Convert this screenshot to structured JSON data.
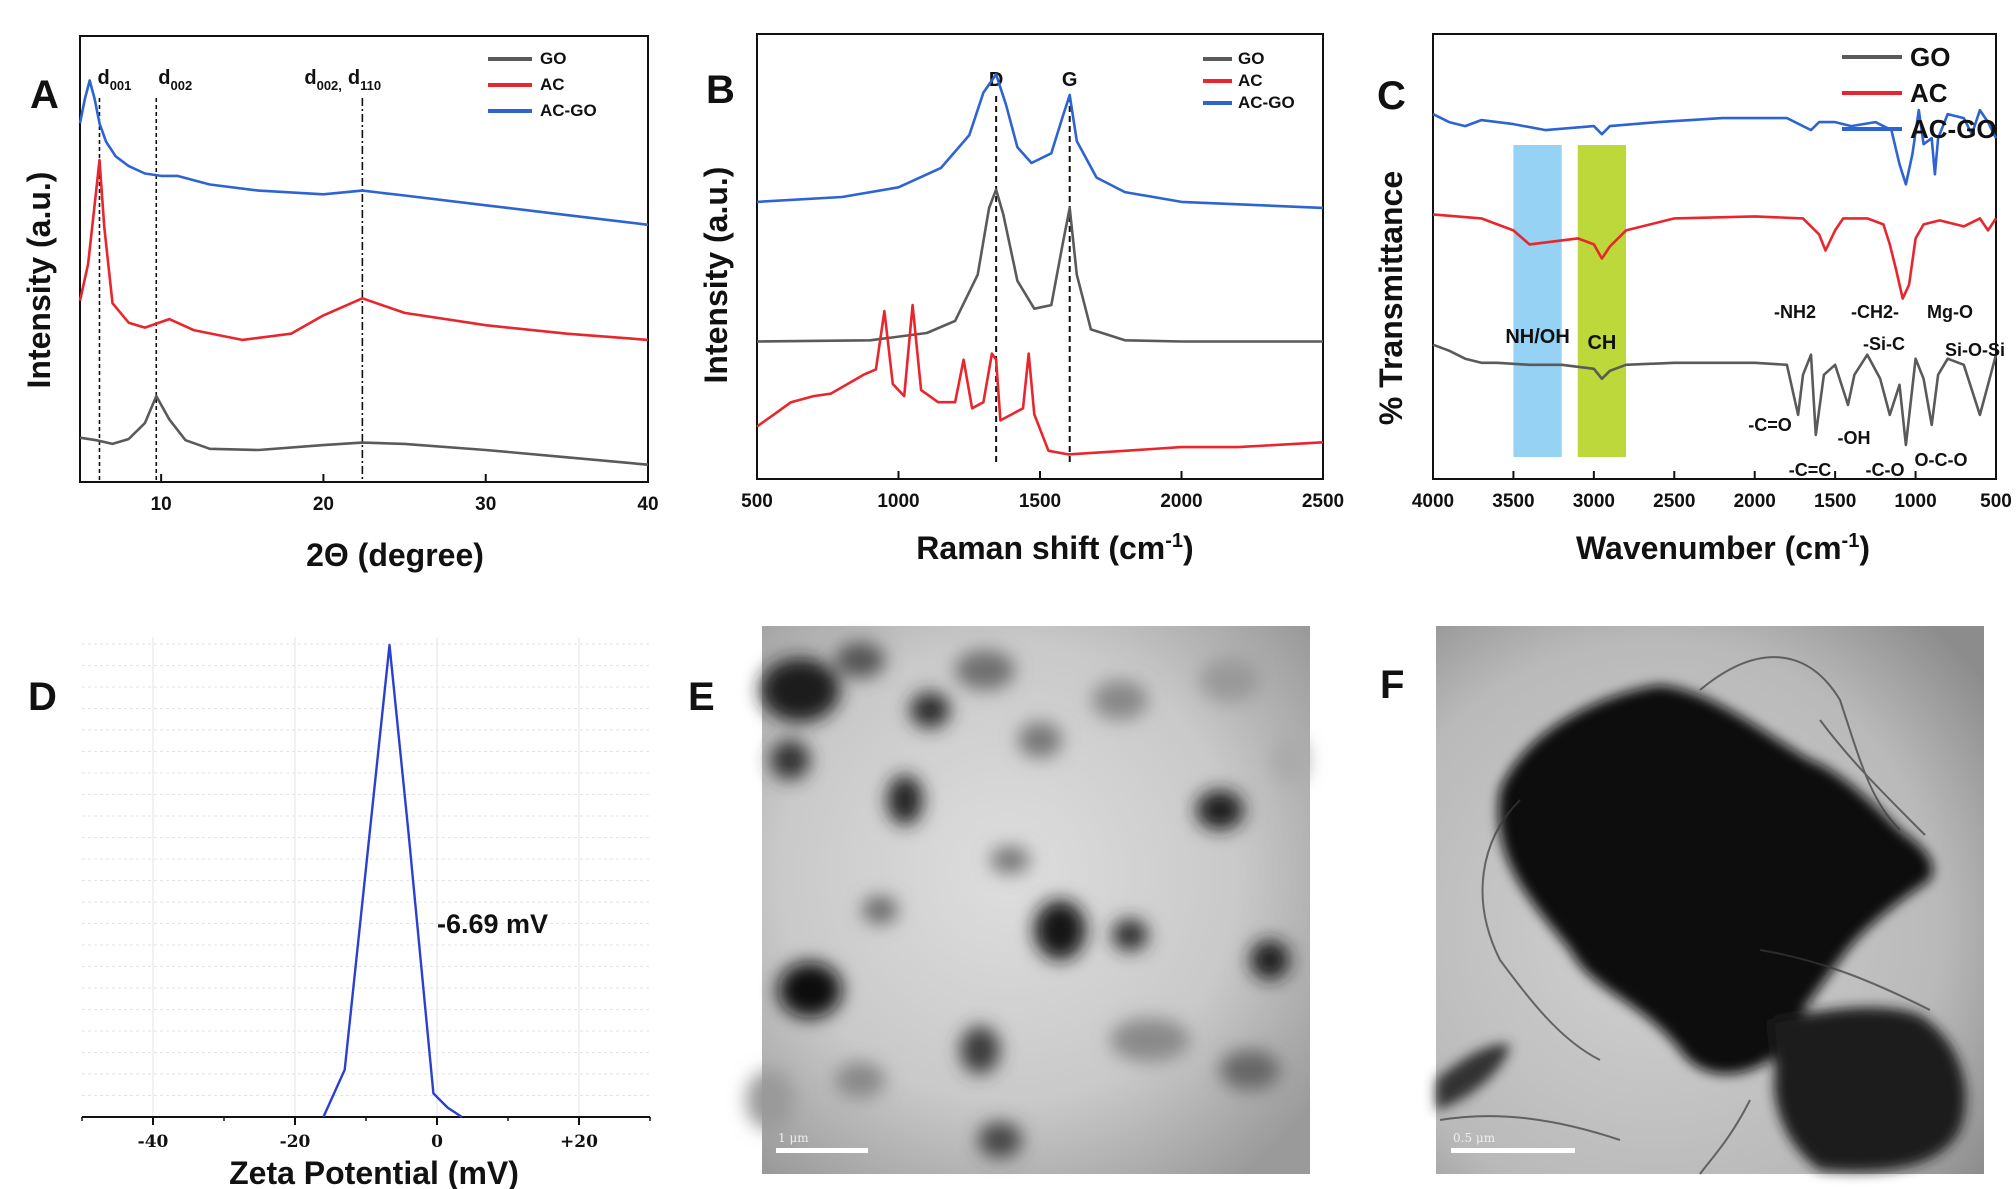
{
  "panels": {
    "A": "A",
    "B": "B",
    "C": "C",
    "D": "D",
    "E": "E",
    "F": "F"
  },
  "colors": {
    "GO": "#5a5a5a",
    "AC": "#e8262d",
    "AC-GO": "#2d64d2",
    "zeta": "#2b3fd0",
    "nh_band": "#8fd0f2",
    "ch_band": "#b8d630"
  },
  "chart_data": [
    {
      "id": "A",
      "type": "line",
      "xlabel": "2Θ (degree)",
      "ylabel": "Intensity (a.u.)",
      "xlim": [
        5,
        40
      ],
      "xticks": [
        10,
        20,
        30,
        40
      ],
      "legend": [
        "GO",
        "AC",
        "AC-GO"
      ],
      "legend_position": "top-right",
      "reference_lines": [
        {
          "x": 6.2,
          "sub": "001"
        },
        {
          "x": 9.7,
          "sub": "002"
        },
        {
          "x": 22.4,
          "sub": "002,",
          "sub2": "110"
        }
      ],
      "series": [
        {
          "name": "GO",
          "x": [
            5,
            6,
            7,
            8,
            9,
            9.7,
            10.5,
            11.5,
            13,
            16,
            20,
            22.4,
            25,
            30,
            35,
            40
          ],
          "y": [
            0.28,
            0.26,
            0.23,
            0.27,
            0.4,
            0.62,
            0.43,
            0.26,
            0.19,
            0.18,
            0.22,
            0.24,
            0.23,
            0.18,
            0.12,
            0.06
          ]
        },
        {
          "name": "AC",
          "x": [
            5,
            5.5,
            6.0,
            6.2,
            6.5,
            7,
            8,
            9,
            10.5,
            12,
            15,
            18,
            20,
            22.4,
            25,
            30,
            35,
            40
          ],
          "y": [
            1.4,
            1.7,
            2.3,
            2.55,
            2.0,
            1.38,
            1.22,
            1.18,
            1.25,
            1.16,
            1.08,
            1.13,
            1.28,
            1.42,
            1.3,
            1.2,
            1.13,
            1.08
          ]
        },
        {
          "name": "AC-GO",
          "x": [
            5,
            5.3,
            5.6,
            5.9,
            6.2,
            6.6,
            7.2,
            8,
            9,
            10,
            11,
            13,
            16,
            20,
            22.4,
            25,
            30,
            35,
            40
          ],
          "y": [
            2.85,
            3.05,
            3.2,
            3.05,
            2.85,
            2.7,
            2.58,
            2.5,
            2.44,
            2.42,
            2.42,
            2.35,
            2.3,
            2.27,
            2.3,
            2.26,
            2.18,
            2.1,
            2.02
          ]
        }
      ]
    },
    {
      "id": "B",
      "type": "line",
      "xlabel": "Raman shift (cm",
      "xlabel_sup": "-1",
      "xlabel_end": ")",
      "ylabel": "Intensity (a.u.)",
      "xlim": [
        500,
        2500
      ],
      "xticks": [
        500,
        1000,
        1500,
        2000,
        2500
      ],
      "legend": [
        "GO",
        "AC",
        "AC-GO"
      ],
      "legend_position": "top-right",
      "reference_lines": [
        {
          "x": 1345,
          "label": "D"
        },
        {
          "x": 1605,
          "label": "G"
        }
      ],
      "series": [
        {
          "name": "GO",
          "x": [
            500,
            900,
            1100,
            1200,
            1280,
            1320,
            1345,
            1370,
            1420,
            1480,
            1540,
            1580,
            1605,
            1630,
            1680,
            1800,
            2000,
            2500
          ],
          "y": [
            1.45,
            1.46,
            1.52,
            1.62,
            2.0,
            2.55,
            2.7,
            2.5,
            1.95,
            1.72,
            1.75,
            2.25,
            2.55,
            2.0,
            1.55,
            1.46,
            1.45,
            1.45
          ]
        },
        {
          "name": "AC",
          "x": [
            500,
            560,
            620,
            700,
            760,
            820,
            880,
            920,
            950,
            980,
            1020,
            1050,
            1080,
            1140,
            1200,
            1230,
            1260,
            1300,
            1330,
            1345,
            1360,
            1400,
            1440,
            1460,
            1480,
            1530,
            1600,
            1800,
            2000,
            2200,
            2500
          ],
          "y": [
            0.75,
            0.85,
            0.95,
            1.0,
            1.02,
            1.1,
            1.18,
            1.22,
            1.7,
            1.1,
            1.0,
            1.75,
            1.05,
            0.95,
            0.95,
            1.3,
            0.9,
            0.95,
            1.35,
            1.3,
            0.8,
            0.85,
            0.9,
            1.35,
            0.85,
            0.55,
            0.52,
            0.55,
            0.58,
            0.58,
            0.62
          ]
        },
        {
          "name": "AC-GO",
          "x": [
            500,
            800,
            1000,
            1150,
            1250,
            1300,
            1345,
            1380,
            1420,
            1470,
            1540,
            1580,
            1605,
            1630,
            1700,
            1800,
            2000,
            2500
          ],
          "y": [
            2.6,
            2.64,
            2.72,
            2.88,
            3.15,
            3.5,
            3.65,
            3.4,
            3.05,
            2.92,
            3.0,
            3.3,
            3.48,
            3.1,
            2.8,
            2.68,
            2.6,
            2.55
          ]
        }
      ]
    },
    {
      "id": "C",
      "type": "line",
      "xlabel": "Wavenumber (cm",
      "xlabel_sup": "-1",
      "xlabel_end": ")",
      "ylabel": "% Transmittance",
      "xlim": [
        4000,
        500
      ],
      "xticks": [
        4000,
        3500,
        3000,
        2500,
        2000,
        1500,
        1000,
        500
      ],
      "legend": [
        "GO",
        "AC",
        "AC-GO"
      ],
      "legend_position": "top-right",
      "bands": [
        {
          "label": "NH/OH",
          "from": 3500,
          "to": 3200
        },
        {
          "label": "CH",
          "from": 3100,
          "to": 2800
        }
      ],
      "annotations": [
        "-NH2",
        "-CH2-",
        "-Si-C",
        "Mg-O",
        "Si-O-Si",
        "-C=O",
        "-OH",
        "-C=C",
        "-C-O",
        "O-C-O"
      ],
      "series": [
        {
          "name": "GO",
          "x": [
            4000,
            3900,
            3800,
            3700,
            3600,
            3400,
            3200,
            3000,
            2950,
            2900,
            2800,
            2500,
            2000,
            1800,
            1730,
            1700,
            1650,
            1620,
            1570,
            1500,
            1420,
            1380,
            1300,
            1220,
            1160,
            1100,
            1060,
            1000,
            950,
            900,
            860,
            800,
            700,
            600,
            550,
            500
          ],
          "y": [
            0.55,
            0.52,
            0.48,
            0.46,
            0.46,
            0.45,
            0.45,
            0.43,
            0.38,
            0.42,
            0.45,
            0.46,
            0.46,
            0.45,
            0.2,
            0.4,
            0.5,
            0.1,
            0.4,
            0.45,
            0.25,
            0.4,
            0.5,
            0.38,
            0.2,
            0.35,
            0.05,
            0.48,
            0.38,
            0.15,
            0.4,
            0.48,
            0.45,
            0.2,
            0.35,
            0.5
          ]
        },
        {
          "name": "AC",
          "x": [
            4000,
            3700,
            3500,
            3400,
            3300,
            3100,
            3000,
            2950,
            2900,
            2800,
            2500,
            2000,
            1700,
            1600,
            1560,
            1500,
            1450,
            1300,
            1200,
            1160,
            1120,
            1080,
            1040,
            1000,
            950,
            850,
            700,
            600,
            550,
            500
          ],
          "y": [
            1.2,
            1.18,
            1.12,
            1.05,
            1.06,
            1.08,
            1.05,
            0.98,
            1.04,
            1.12,
            1.18,
            1.19,
            1.18,
            1.1,
            1.02,
            1.12,
            1.18,
            1.18,
            1.15,
            1.05,
            0.92,
            0.78,
            0.85,
            1.08,
            1.15,
            1.17,
            1.14,
            1.18,
            1.12,
            1.18
          ]
        },
        {
          "name": "AC-GO",
          "x": [
            4000,
            3900,
            3800,
            3700,
            3500,
            3300,
            3000,
            2950,
            2900,
            2600,
            2200,
            1800,
            1650,
            1600,
            1500,
            1400,
            1250,
            1150,
            1100,
            1060,
            1020,
            980,
            950,
            900,
            880,
            860,
            800,
            700,
            650,
            600,
            550,
            500
          ],
          "y": [
            1.7,
            1.66,
            1.64,
            1.67,
            1.65,
            1.62,
            1.64,
            1.6,
            1.64,
            1.66,
            1.68,
            1.68,
            1.62,
            1.66,
            1.66,
            1.64,
            1.66,
            1.62,
            1.45,
            1.35,
            1.5,
            1.72,
            1.55,
            1.58,
            1.4,
            1.58,
            1.7,
            1.68,
            1.6,
            1.72,
            1.66,
            1.58
          ]
        }
      ]
    },
    {
      "id": "D",
      "type": "line",
      "xlabel": "Zeta Potential (mV)",
      "ylabel": "",
      "xlim": [
        -50,
        30
      ],
      "xticks": [
        -40,
        -20,
        0,
        20
      ],
      "xtick_labels": [
        "-40",
        "-20",
        "0",
        "+20"
      ],
      "peak_label": "-6.69 mV",
      "series": [
        {
          "name": "",
          "x": [
            -16,
            -13,
            -9.5,
            -6.69,
            -4,
            -0.5,
            1.5,
            3.5
          ],
          "y": [
            0,
            0.1,
            0.6,
            1.0,
            0.6,
            0.05,
            0.02,
            0
          ]
        }
      ]
    }
  ],
  "images": {
    "E": {
      "scale_bar": "1 μm"
    },
    "F": {
      "scale_bar": "0.5 μm"
    }
  }
}
